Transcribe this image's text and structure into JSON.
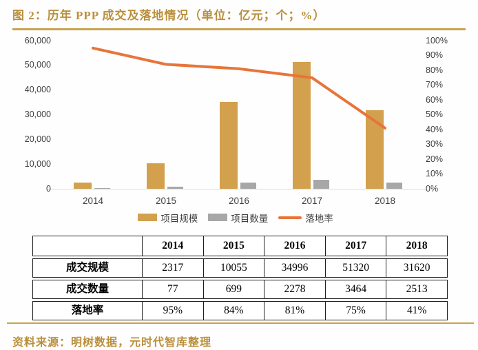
{
  "figure": {
    "title": "图 2：历年 PPP 成交及落地情况（单位：亿元；个；%）",
    "source": "资料来源：明树数据，元时代智库整理"
  },
  "colors": {
    "accent_gold_text": "#BA8F3C",
    "rule_gold": "#C8A34C",
    "bar_scale": "#D3A04E",
    "bar_count": "#A7A7A7",
    "line_rate": "#E8743A",
    "axis_text": "#3F3F3F",
    "baseline_gray": "#D9D9D9"
  },
  "chart_data": {
    "type": "combo-bar-line",
    "categories": [
      "2014",
      "2015",
      "2016",
      "2017",
      "2018"
    ],
    "series": [
      {
        "name": "项目规模",
        "type": "bar",
        "axis": "left",
        "values": [
          2317,
          10055,
          34996,
          51320,
          31620
        ]
      },
      {
        "name": "项目数量",
        "type": "bar",
        "axis": "left",
        "values": [
          77,
          699,
          2278,
          3464,
          2513
        ]
      },
      {
        "name": "落地率",
        "type": "line",
        "axis": "right",
        "values": [
          95,
          84,
          81,
          75,
          41
        ]
      }
    ],
    "left_axis": {
      "min": 0,
      "max": 60000,
      "ticks": [
        "60,000",
        "50,000",
        "40,000",
        "30,000",
        "20,000",
        "10,000",
        "0"
      ]
    },
    "right_axis": {
      "min": 0,
      "max": 100,
      "ticks": [
        "100%",
        "90%",
        "80%",
        "70%",
        "60%",
        "50%",
        "40%",
        "30%",
        "20%",
        "10%",
        "0%"
      ]
    },
    "legend": [
      {
        "label": "项目规模",
        "swatch": "bar-gold"
      },
      {
        "label": "项目数量",
        "swatch": "bar-gray"
      },
      {
        "label": "落地率",
        "swatch": "line-orange"
      }
    ],
    "gridlines": false,
    "legend_position": "bottom"
  },
  "table": {
    "header": [
      "",
      "2014",
      "2015",
      "2016",
      "2017",
      "2018"
    ],
    "rows": [
      {
        "label": "成交规模",
        "values": [
          "2317",
          "10055",
          "34996",
          "51320",
          "31620"
        ]
      },
      {
        "label": "成交数量",
        "values": [
          "77",
          "699",
          "2278",
          "3464",
          "2513"
        ]
      },
      {
        "label": "落地率",
        "values": [
          "95%",
          "84%",
          "81%",
          "75%",
          "41%"
        ]
      }
    ]
  }
}
